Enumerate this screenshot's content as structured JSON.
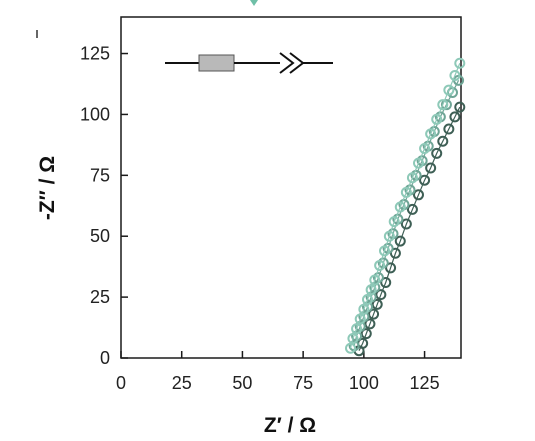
{
  "chart_data": {
    "type": "scatter",
    "title": "",
    "xlabel": "Z′ / Ω",
    "ylabel": "-Z″ / Ω",
    "xlim": [
      0,
      140
    ],
    "ylim": [
      0,
      140
    ],
    "xticks": [
      0,
      25,
      50,
      75,
      100,
      125
    ],
    "yticks": [
      0,
      25,
      50,
      75,
      100,
      125
    ],
    "grid": false,
    "inset": "equivalent circuit: resistor in series with constant phase element",
    "series": [
      {
        "color": "#3e5f55",
        "marker": "open-circle",
        "x": [
          98.0,
          99.5,
          101.0,
          102.5,
          104.0,
          105.5,
          107.0,
          109.0,
          111.0,
          113.0,
          115.0,
          117.5,
          120.0,
          122.5,
          125.0,
          127.5,
          130.0,
          132.5,
          135.0,
          137.5,
          139.5
        ],
        "y": [
          3.0,
          6.0,
          10.0,
          14.0,
          18.0,
          22.0,
          26.0,
          31.0,
          37.0,
          43.0,
          48.0,
          55.0,
          61.0,
          67.0,
          73.0,
          78.0,
          84.0,
          89.0,
          94.0,
          99.0,
          103.0
        ]
      },
      {
        "color": "#6fa596",
        "marker": "open-circle",
        "x": [
          96.0,
          97.0,
          98.5,
          100.0,
          101.5,
          103.0,
          104.5,
          106.0,
          108.0,
          110.0,
          112.0,
          114.0,
          116.5,
          119.0,
          121.5,
          124.0,
          126.5,
          129.0,
          131.5,
          134.0,
          136.5,
          139.0
        ],
        "y": [
          5.0,
          9.0,
          13.0,
          17.0,
          21.0,
          25.0,
          29.0,
          33.0,
          39.0,
          45.0,
          51.0,
          57.0,
          63.0,
          69.0,
          75.0,
          81.0,
          87.0,
          93.0,
          99.0,
          104.0,
          109.0,
          114.0
        ]
      },
      {
        "color": "#8ec9b8",
        "marker": "open-circle",
        "x": [
          94.5,
          95.5,
          97.0,
          98.5,
          100.0,
          101.5,
          103.0,
          104.5,
          106.5,
          108.5,
          110.5,
          112.5,
          115.0,
          117.5,
          120.0,
          122.5,
          125.0,
          127.5,
          130.0,
          132.5,
          135.0,
          137.5,
          139.5
        ],
        "y": [
          4.0,
          8.0,
          12.0,
          16.0,
          20.0,
          24.0,
          28.0,
          32.0,
          38.0,
          44.0,
          50.0,
          56.0,
          62.0,
          68.0,
          74.0,
          80.0,
          86.0,
          92.0,
          98.0,
          104.0,
          110.0,
          116.0,
          121.0
        ]
      }
    ]
  },
  "colors": {
    "axis": "#1a1a1a",
    "accent": "#2fa37e"
  }
}
